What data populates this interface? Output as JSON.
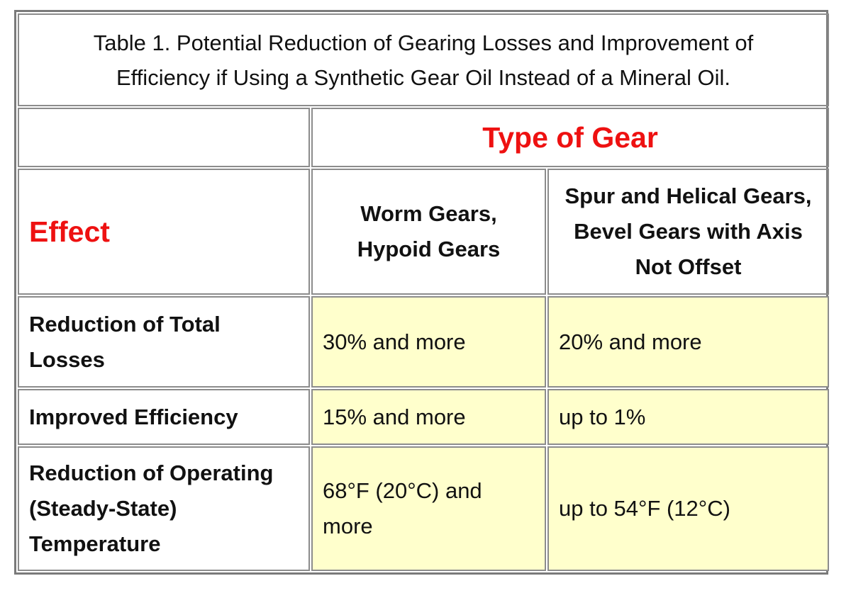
{
  "caption": "Table 1. Potential Reduction of Gearing Losses and Improvement of Efficiency if Using a Synthetic Gear Oil Instead of a Mineral Oil.",
  "group_header": "Type of Gear",
  "effect_header": "Effect",
  "columns": [
    "Worm Gears, Hypoid Gears",
    "Spur and Helical Gears, Bevel Gears with Axis Not Offset"
  ],
  "rows": [
    {
      "label": "Reduction of Total Losses",
      "values": [
        "30% and more",
        "20% and more"
      ]
    },
    {
      "label": "Improved Efficiency",
      "values": [
        "15% and more",
        "up to 1%"
      ]
    },
    {
      "label": "Reduction of Operating (Steady-State) Temperature",
      "values": [
        "68°F (20°C) and more",
        "up to 54°F (12°C)"
      ]
    }
  ],
  "colors": {
    "accent_red": "#ee1111",
    "value_fill": "#ffffcc",
    "border": "#8c8c8c",
    "text": "#111111"
  }
}
